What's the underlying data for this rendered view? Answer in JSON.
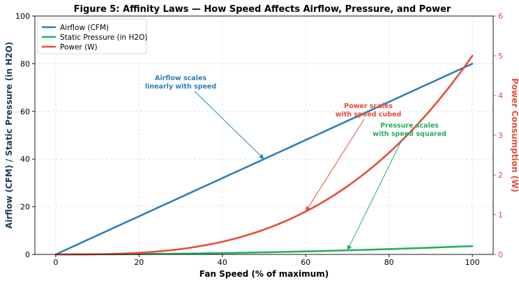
{
  "chart_data": {
    "type": "line",
    "title": "Figure 5: Affinity Laws — How Speed Affects Airflow, Pressure, and Power",
    "xlabel": "Fan Speed (% of maximum)",
    "ylabel_left": "Airflow (CFM) / Static Pressure (in H2O)",
    "ylabel_right": "Power Consumption (W)",
    "xlim": [
      -5,
      105
    ],
    "ylim_left": [
      0,
      100
    ],
    "ylim_right": [
      0,
      6
    ],
    "x_ticks": [
      0,
      20,
      40,
      60,
      80,
      100
    ],
    "y_ticks_left": [
      0,
      20,
      40,
      60,
      80,
      100
    ],
    "y_ticks_right": [
      0,
      1,
      2,
      3,
      4,
      5,
      6
    ],
    "grid": true,
    "legend_position": "top-left",
    "x": [
      0,
      10,
      20,
      30,
      40,
      50,
      60,
      70,
      80,
      90,
      100
    ],
    "series": [
      {
        "name": "Airflow (CFM)",
        "axis": "left",
        "color": "#2e7fb8",
        "values": [
          0,
          8,
          16,
          24,
          32,
          40,
          48,
          56,
          64,
          72,
          80
        ]
      },
      {
        "name": "Static Pressure (in H2O)",
        "axis": "left",
        "color": "#27ae60",
        "values": [
          0,
          0.04,
          0.14,
          0.32,
          0.56,
          0.88,
          1.26,
          1.72,
          2.24,
          2.84,
          3.5
        ]
      },
      {
        "name": "Power (W)",
        "axis": "right",
        "color": "#e74c3c",
        "values": [
          0,
          0.005,
          0.04,
          0.135,
          0.32,
          0.625,
          1.08,
          1.715,
          2.56,
          3.645,
          5.0
        ]
      }
    ],
    "annotations": [
      {
        "lines": [
          "Airflow scales",
          "linearly with speed"
        ],
        "color": "#2e7fb8",
        "target": [
          50,
          40
        ],
        "axis": "left"
      },
      {
        "lines": [
          "Power scales",
          "with speed cubed"
        ],
        "color": "#e74c3c",
        "target": [
          60,
          1.08
        ],
        "axis": "right"
      },
      {
        "lines": [
          "Pressure scales",
          "with speed squared"
        ],
        "color": "#27ae60",
        "target": [
          70,
          1.72
        ],
        "axis": "left"
      }
    ]
  }
}
